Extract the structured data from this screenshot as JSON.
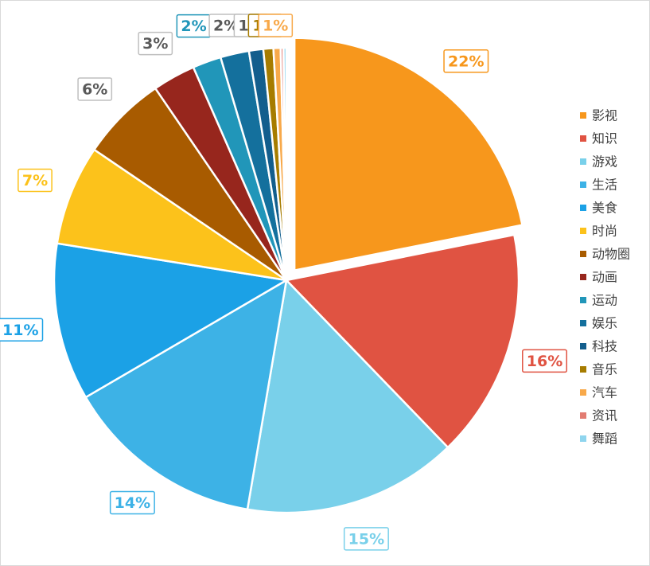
{
  "chart_data": {
    "type": "pie",
    "categories": [
      "影视",
      "知识",
      "游戏",
      "生活",
      "美食",
      "时尚",
      "动物圈",
      "动画",
      "运动",
      "娱乐",
      "科技",
      "音乐",
      "汽车",
      "资讯",
      "舞蹈"
    ],
    "values": [
      22,
      16,
      15,
      14,
      11,
      7,
      6,
      3,
      2,
      2,
      1,
      0.7,
      0.5,
      0.2,
      0.2
    ],
    "value_labels": [
      "22%",
      "16%",
      "15%",
      "14%",
      "11%",
      "7%",
      "6%",
      "3%",
      "2%",
      "2%",
      "1%",
      "1%",
      "1%",
      null,
      null
    ],
    "colors": [
      "#f7971c",
      "#e05342",
      "#79d0ea",
      "#3db2e6",
      "#1ba1e6",
      "#fcc21b",
      "#a85b00",
      "#97261d",
      "#2196b9",
      "#14709d",
      "#135e8d",
      "#a67c00",
      "#f8a94a",
      "#e27c72",
      "#8fd5ee"
    ],
    "legend": "right"
  }
}
